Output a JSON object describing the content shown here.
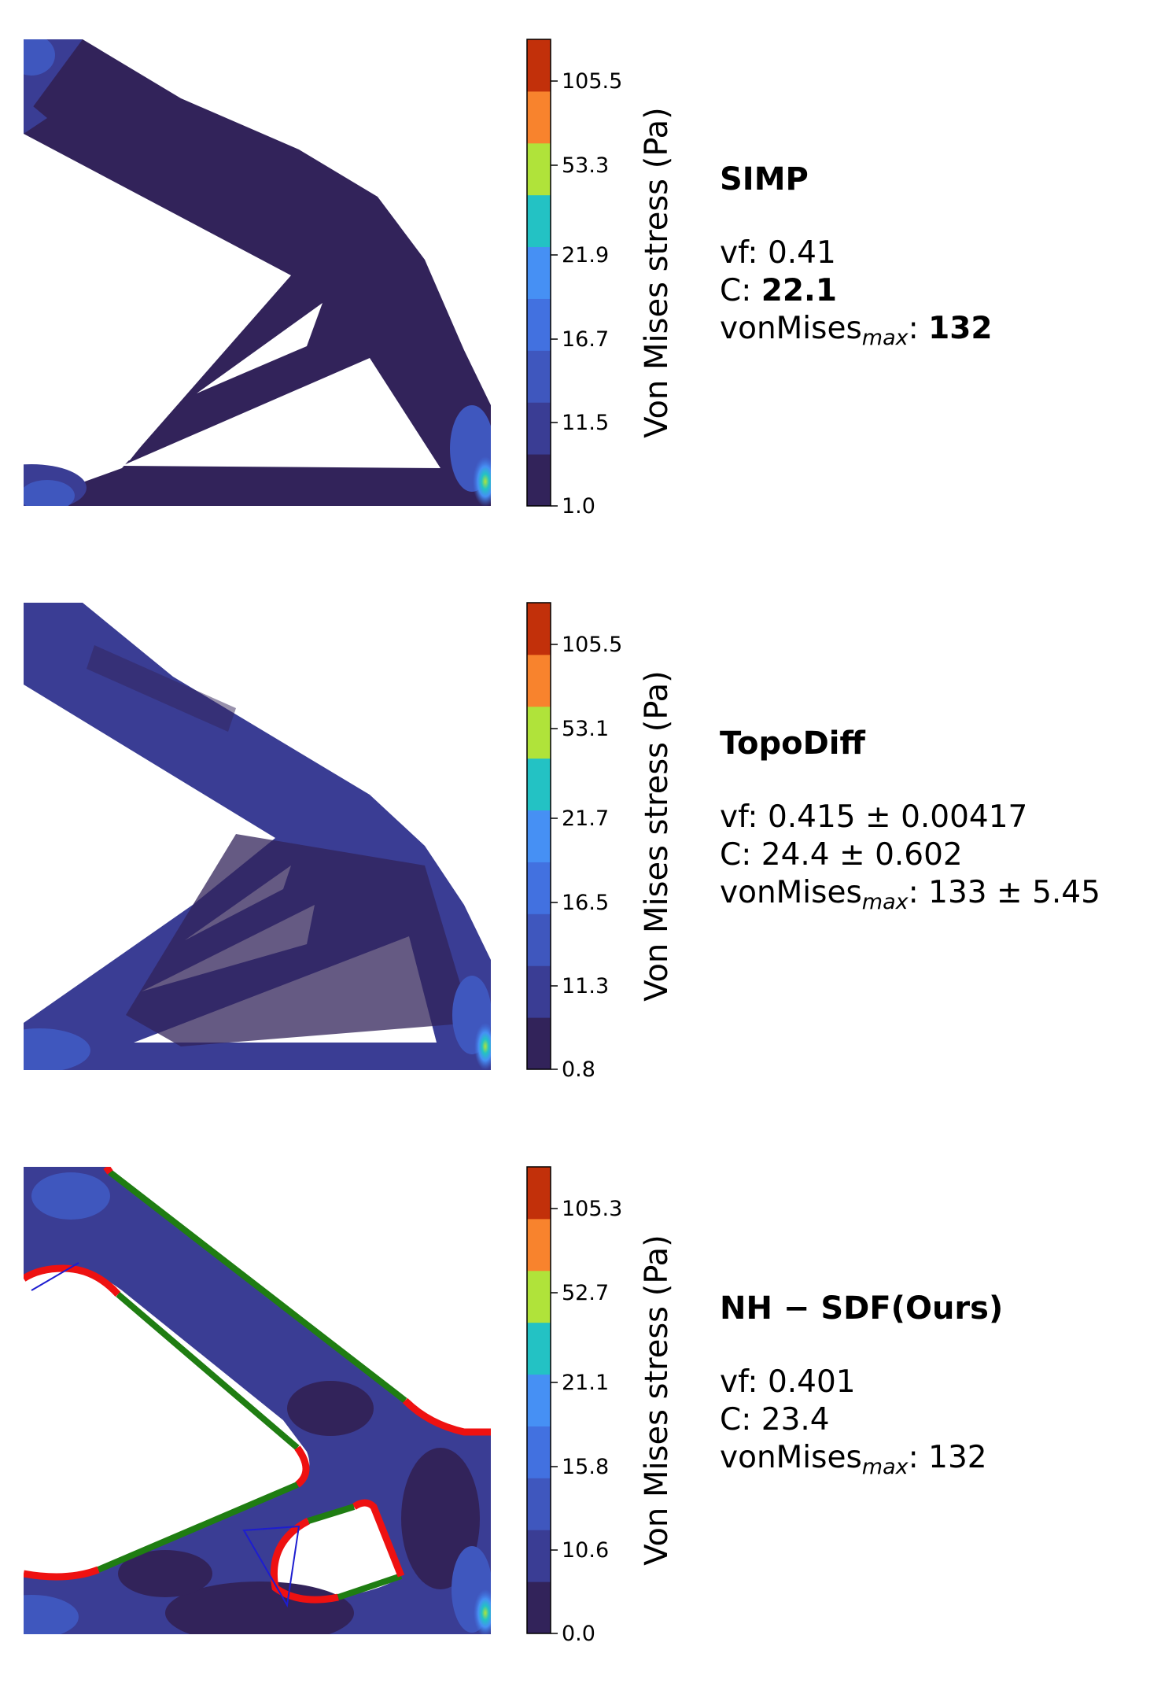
{
  "colorbar_colors": [
    "#32235a",
    "#3a3d94",
    "#3f57be",
    "#4271e0",
    "#4690f4",
    "#23c2c4",
    "#b0e33a",
    "#f8832d",
    "#c2300a"
  ],
  "panels": [
    {
      "method": "SIMP",
      "vf_label": "vf: ",
      "vf_value": "0.41",
      "c_label": "C: ",
      "c_value": "22.1",
      "vm_prefix": "vonMises",
      "vm_sub": "max",
      "vm_colon": ": ",
      "vm_value": "132",
      "colorbar_label": "Von Mises stress (Pa)"
    },
    {
      "method": "TopoDiff",
      "vf_label": "vf: ",
      "vf_value": "0.415 ± 0.00417",
      "c_label": "C: ",
      "c_value": "24.4 ± 0.602",
      "vm_prefix": "vonMises",
      "vm_sub": "max",
      "vm_colon": ": ",
      "vm_value": "133 ± 5.45",
      "colorbar_label": "Von Mises stress (Pa)"
    },
    {
      "method": "NH − SDF(Ours)",
      "vf_label": "vf: ",
      "vf_value": "0.401",
      "c_label": "C: ",
      "c_value": "23.4",
      "vm_prefix": "vonMises",
      "vm_sub": "max",
      "vm_colon": ": ",
      "vm_value": "132",
      "colorbar_label": "Von Mises stress (Pa)"
    }
  ],
  "chart_data": [
    {
      "type": "heatmap",
      "title": "SIMP",
      "colorbar": {
        "label": "Von Mises stress (Pa)",
        "ticks": [
          "1.0",
          "11.5",
          "16.7",
          "21.9",
          "53.3",
          "105.5"
        ]
      },
      "metrics": {
        "vf": 0.41,
        "C": 22.1,
        "vonMises_max": 132
      }
    },
    {
      "type": "heatmap",
      "title": "TopoDiff",
      "colorbar": {
        "label": "Von Mises stress (Pa)",
        "ticks": [
          "0.8",
          "11.3",
          "16.5",
          "21.7",
          "53.1",
          "105.5"
        ]
      },
      "metrics": {
        "vf": "0.415 ± 0.00417",
        "C": "24.4 ± 0.602",
        "vonMises_max": "133 ± 5.45"
      }
    },
    {
      "type": "heatmap",
      "title": "NH − SDF(Ours)",
      "colorbar": {
        "label": "Von Mises stress (Pa)",
        "ticks": [
          "0.0",
          "10.6",
          "15.8",
          "21.1",
          "52.7",
          "105.3"
        ]
      },
      "metrics": {
        "vf": 0.401,
        "C": 23.4,
        "vonMises_max": 132
      }
    }
  ]
}
